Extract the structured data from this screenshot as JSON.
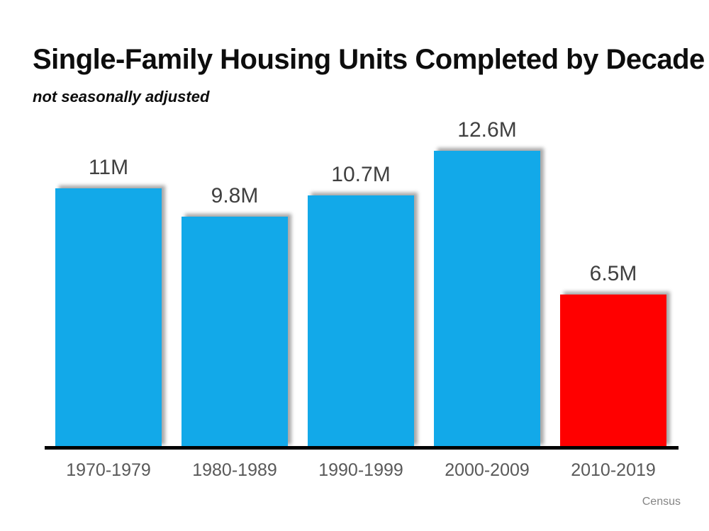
{
  "chart_data": {
    "type": "bar",
    "title": "Single-Family Housing Units Completed by Decade",
    "subtitle": "not seasonally adjusted",
    "source": "Census",
    "categories": [
      "1970-1979",
      "1980-1989",
      "1990-1999",
      "2000-2009",
      "2010-2019"
    ],
    "values": [
      11,
      9.8,
      10.7,
      12.6,
      6.5
    ],
    "value_labels": [
      "11M",
      "9.8M",
      "10.7M",
      "12.6M",
      "6.5M"
    ],
    "unit": "M",
    "ylim": [
      0,
      13
    ],
    "grid": "off",
    "legend": "none",
    "highlight_index": 4,
    "bar_colors": [
      "#12A9E9",
      "#12A9E9",
      "#12A9E9",
      "#12A9E9",
      "#FF0000"
    ]
  },
  "colors": {
    "bar_blue": "#12A9E9",
    "bar_red": "#FF0000",
    "axis": "#000000",
    "title": "#0d0d0d",
    "value_label": "#404040",
    "category_label": "#595959",
    "source": "#848484",
    "background": "#ffffff"
  }
}
